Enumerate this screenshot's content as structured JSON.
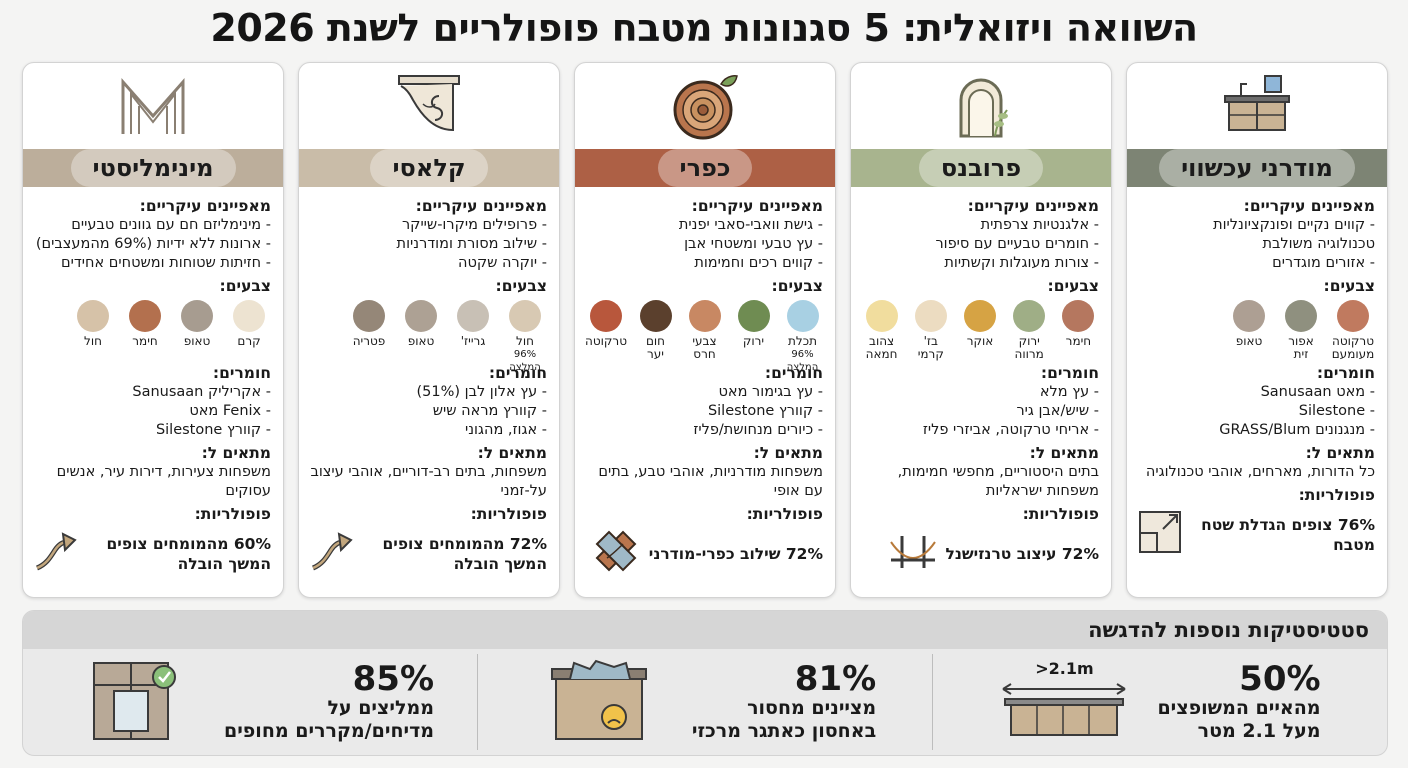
{
  "title": "השוואה ויזואלית: 5 סגנונות מטבח פופולריים לשנת 2026",
  "labels": {
    "features": "מאפיינים עיקריים:",
    "colors": "צבעים:",
    "materials": "חומרים:",
    "fit": "מתאים ל:",
    "popularity": "פופולריות:"
  },
  "cards": [
    {
      "name": "מודרני עכשווי",
      "header_color": "#7d8474",
      "features": [
        "- קווים נקיים ופונקציונליות",
        "טכנולוגיה משולבת",
        "- אזורים מוגדרים"
      ],
      "colors": [
        {
          "label": "טרקוטה",
          "label2": "מעומעם",
          "hex": "#c07a5f"
        },
        {
          "label": "אפור זית",
          "label2": "",
          "hex": "#8f907f"
        },
        {
          "label": "טאופ",
          "label2": "",
          "hex": "#ad9f93"
        }
      ],
      "materials": [
        "- מאט Sanusaan",
        "- Silestone",
        "- מנגנונים GRASS/Blum"
      ],
      "fit": "כל הדורות, מארחים, אוהבי טכנולוגיה",
      "popularity": "76% צופים הגדלת שטח מטבח",
      "pop_icon": "floorplan-icon",
      "top_icon": "kitchen-island-icon"
    },
    {
      "name": "פרובנס",
      "header_color": "#a8b48e",
      "features": [
        "- אלגנטיות צרפתית",
        "- חומרים טבעיים עם סיפור",
        "- צורות מעוגלות וקשתיות"
      ],
      "colors": [
        {
          "label": "חימר",
          "label2": "",
          "hex": "#b5775f"
        },
        {
          "label": "ירוק",
          "label2": "מרווה",
          "hex": "#9fae86"
        },
        {
          "label": "אוקר",
          "label2": "",
          "hex": "#d6a344"
        },
        {
          "label": "בז'",
          "label2": "קרמי",
          "hex": "#ecdcc1"
        },
        {
          "label": "צהוב",
          "label2": "חמאה",
          "hex": "#f1dd9e"
        }
      ],
      "materials": [
        "- עץ מלא",
        "- שיש/אבן גיר",
        "- אריחי טרקוטה, אביזרי פליז"
      ],
      "fit": "בתים היסטוריים, מחפשי חמימות, משפחות ישראליות",
      "popularity": "72% עיצוב טרנזישנל",
      "pop_icon": "bridge-icon",
      "top_icon": "arch-window-icon"
    },
    {
      "name": "כפרי",
      "header_color": "#ad6045",
      "features": [
        "- גישת וואבי-סאבי יפנית",
        "- עץ טבעי ומשטחי אבן",
        "- קווים רכים וחמימות"
      ],
      "colors": [
        {
          "label": "תכלת",
          "label2": "96% המלצה",
          "hex": "#a8d0e3"
        },
        {
          "label": "ירוק",
          "label2": "",
          "hex": "#6f8c52"
        },
        {
          "label": "צבעי",
          "label2": "חרס",
          "hex": "#c88863"
        },
        {
          "label": "חום",
          "label2": "יער",
          "hex": "#5b402d"
        },
        {
          "label": "טרקוטה",
          "label2": "",
          "hex": "#b8573c"
        }
      ],
      "materials": [
        "- עץ בגימור מאט",
        "- קוורץ Silestone",
        "- כיורים מנחושת/פליז"
      ],
      "fit": "משפחות מודרניות, אוהבי טבע, בתים עם אופי",
      "popularity": "72% שילוב כפרי-מודרני",
      "pop_icon": "wood-plank-icon",
      "top_icon": "log-slice-icon"
    },
    {
      "name": "קלאסי",
      "header_color": "#c9bca8",
      "features": [
        "- פרופילים מיקרו-שייקר",
        "- שילוב מסורת ומודרניות",
        "- יוקרה שקטה"
      ],
      "colors": [
        {
          "label": "חול",
          "label2": "96% המלצה",
          "hex": "#d8c9b3"
        },
        {
          "label": "גרייז'",
          "label2": "",
          "hex": "#c8c0b5"
        },
        {
          "label": "טאופ",
          "label2": "",
          "hex": "#ada194"
        },
        {
          "label": "פטריה",
          "label2": "",
          "hex": "#958778"
        }
      ],
      "materials": [
        "- עץ אלון לבן (51%)",
        "- קוורץ מראה שיש",
        "- אגוז, מהגוני"
      ],
      "fit": "משפחות, בתים רב-דוריים, אוהבי עיצוב על-זמני",
      "popularity": "72% מהמומחים צופים המשך הובלה",
      "pop_icon": "trend-up-arrow-icon",
      "top_icon": "ornate-corbel-icon"
    },
    {
      "name": "מינימליסטי",
      "header_color": "#bcae9b",
      "features": [
        "- מינימליזם חם עם גוונים טבעיים",
        "- ארונות ללא ידיות (69% מהמעצבים)",
        "- חזיתות שטוחות ומשטחים אחידים"
      ],
      "colors": [
        {
          "label": "קרם",
          "label2": "",
          "hex": "#ede3d1"
        },
        {
          "label": "טאופ",
          "label2": "",
          "hex": "#a79c90"
        },
        {
          "label": "חימר",
          "label2": "",
          "hex": "#b3704e"
        },
        {
          "label": "חול",
          "label2": "",
          "hex": "#d6c2a8"
        }
      ],
      "materials": [
        "- אקריליק Sanusaan",
        "- Fenix מאט",
        "- קוורץ Silestone"
      ],
      "fit": "משפחות צעירות, דירות עיר, אנשים עסוקים",
      "popularity": "60% מהמומחים צופים המשך הובלה",
      "pop_icon": "trend-up-arrow-icon",
      "top_icon": "minimal-m-logo-icon"
    }
  ],
  "stats": {
    "title": "סטטיסטיקות נוספות להדגשה",
    "items": [
      {
        "pct": "50%",
        "line1": "מהאיים המשופצים",
        "line2": "מעל 2.1 מטר",
        "icon_label": ">2.1m",
        "icon": "island-measure-icon"
      },
      {
        "pct": "81%",
        "line1": "מציינים מחסור",
        "line2": "באחסון כאתגר מרכזי",
        "icon_label": "",
        "icon": "overflowing-drawer-icon"
      },
      {
        "pct": "85%",
        "line1": "ממליצים על",
        "line2": "מדיחים/מקררים מחופים",
        "icon_label": "",
        "icon": "panel-fridge-icon"
      }
    ]
  }
}
